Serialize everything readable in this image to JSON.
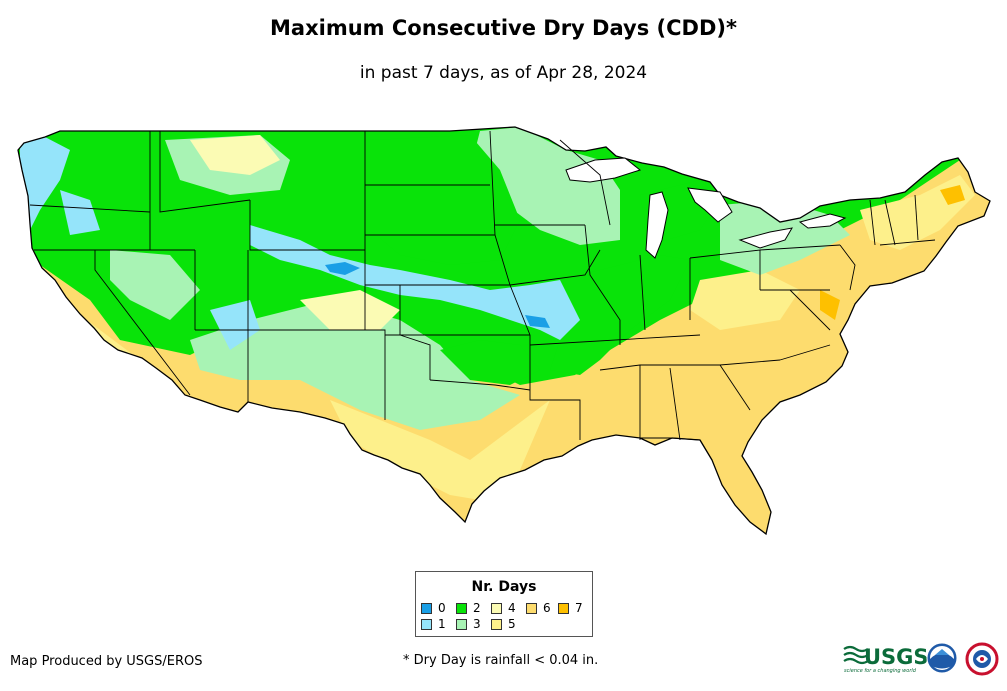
{
  "header": {
    "title": "Maximum Consecutive Dry Days (CDD)*",
    "subtitle": "in past 7 days, as of Apr 28, 2024"
  },
  "legend": {
    "title": "Nr. Days",
    "items": [
      {
        "label": "0",
        "color": "#1a9fe6"
      },
      {
        "label": "1",
        "color": "#95e4fa"
      },
      {
        "label": "2",
        "color": "#09e309"
      },
      {
        "label": "3",
        "color": "#a8f3b4"
      },
      {
        "label": "4",
        "color": "#fbfbb4"
      },
      {
        "label": "5",
        "color": "#fdf08b"
      },
      {
        "label": "6",
        "color": "#fddc6e"
      },
      {
        "label": "7",
        "color": "#fec000"
      }
    ]
  },
  "footer": {
    "credit": "Map Produced by USGS/EROS",
    "footnote": "* Dry Day is rainfall < 0.04 in.",
    "usgs_logo_text": "USGS",
    "usgs_tagline": "science for a changing world"
  }
}
